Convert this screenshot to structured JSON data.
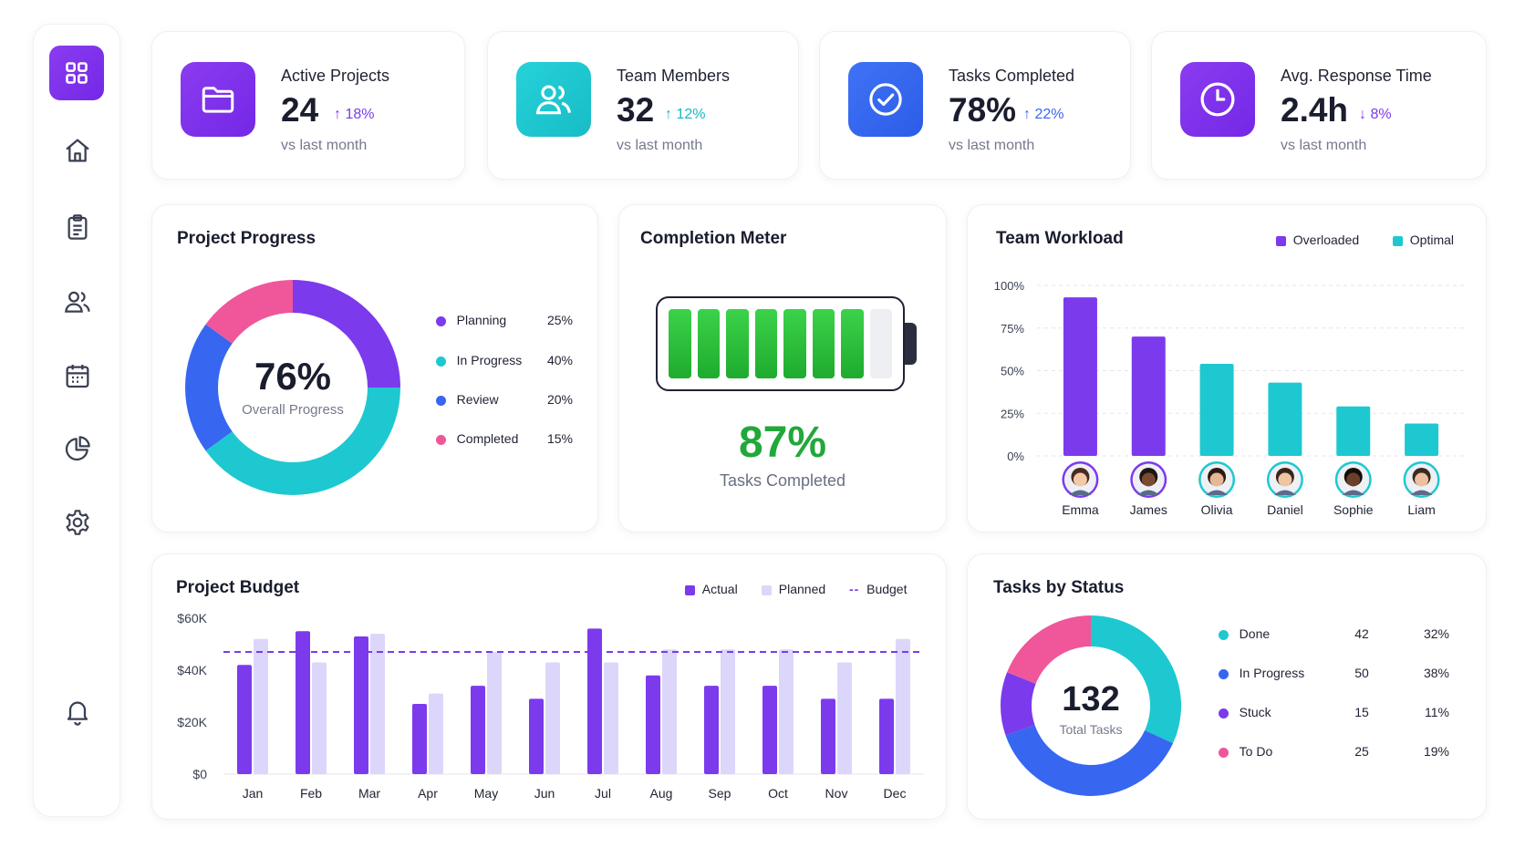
{
  "colors": {
    "purple": "#7c3aed",
    "teal": "#1ec8d0",
    "blue": "#3766f0",
    "pink": "#f0569a",
    "green": "#22b534",
    "lavender": "#ddd6fb"
  },
  "sidebar": {
    "items": [
      {
        "icon": "dashboard-grid-icon"
      },
      {
        "icon": "home-icon"
      },
      {
        "icon": "clipboard-icon"
      },
      {
        "icon": "users-icon"
      },
      {
        "icon": "calendar-icon"
      },
      {
        "icon": "pie-chart-icon"
      },
      {
        "icon": "settings-gear-icon"
      },
      {
        "icon": "bell-icon"
      }
    ]
  },
  "kpis": [
    {
      "label": "Active Projects",
      "value": "24",
      "trend": "18%",
      "direction": "up",
      "sub": "vs last month",
      "icon": "folder-icon",
      "color": "#7c3aed"
    },
    {
      "label": "Team Members",
      "value": "32",
      "trend": "12%",
      "direction": "up",
      "sub": "vs last month",
      "icon": "users-icon",
      "color": "#1ec8d0"
    },
    {
      "label": "Tasks Completed",
      "value": "78%",
      "trend": "22%",
      "direction": "up",
      "sub": "vs last month",
      "icon": "check-circle-icon",
      "color": "#3766f0"
    },
    {
      "label": "Avg. Response Time",
      "value": "2.4h",
      "trend": "8%",
      "direction": "down",
      "sub": "vs last month",
      "icon": "clock-icon",
      "color": "#7c3aed"
    }
  ],
  "project_progress": {
    "title": "Project Progress",
    "center_value": "76%",
    "center_label": "Overall Progress",
    "legend": [
      {
        "label": "Planning",
        "value": "25%"
      },
      {
        "label": "In Progress",
        "value": "40%"
      },
      {
        "label": "Review",
        "value": "20%"
      },
      {
        "label": "Completed",
        "value": "15%"
      }
    ]
  },
  "completion_meter": {
    "title": "Completion Meter",
    "value": "87%",
    "label": "Tasks Completed",
    "fraction": 0.87,
    "segments_total": 8,
    "segments_filled": 7
  },
  "team_workload": {
    "title": "Team Workload",
    "legend": [
      "Overloaded",
      "Optimal"
    ],
    "members": [
      "Emma",
      "James",
      "Olivia",
      "Daniel",
      "Sophie",
      "Liam"
    ]
  },
  "project_budget": {
    "title": "Project Budget",
    "legend": [
      "Actual",
      "Planned",
      "Budget"
    ]
  },
  "tasks_by_status": {
    "title": "Tasks by Status",
    "total_value": "132",
    "total_label": "Total Tasks",
    "rows": [
      {
        "label": "Done",
        "count": "42",
        "percent": "32%"
      },
      {
        "label": "In Progress",
        "count": "50",
        "percent": "38%"
      },
      {
        "label": "Stuck",
        "count": "15",
        "percent": "11%"
      },
      {
        "label": "To Do",
        "count": "25",
        "percent": "19%"
      }
    ]
  },
  "chart_data": [
    {
      "type": "pie",
      "title": "Project Progress",
      "categories": [
        "Planning",
        "In Progress",
        "Review",
        "Completed"
      ],
      "values": [
        25,
        40,
        20,
        15
      ],
      "colors": [
        "#7c3aed",
        "#1ec8d0",
        "#3766f0",
        "#f0569a"
      ]
    },
    {
      "type": "bar",
      "title": "Team Workload",
      "categories": [
        "Emma",
        "James",
        "Olivia",
        "Daniel",
        "Sophie",
        "Liam"
      ],
      "series": [
        {
          "name": "Overloaded",
          "values": [
            93,
            70,
            null,
            null,
            null,
            null
          ],
          "color": "#7c3aed"
        },
        {
          "name": "Optimal",
          "values": [
            null,
            null,
            54,
            43,
            29,
            19
          ],
          "color": "#1ec8d0"
        }
      ],
      "ylim": [
        0,
        100
      ],
      "yticks": [
        "100%",
        "75%",
        "50%",
        "25%",
        "0%"
      ],
      "yticks_values": [
        100,
        75,
        50,
        25,
        0
      ],
      "grid": true,
      "legend": "top-right"
    },
    {
      "type": "bar",
      "title": "Project Budget",
      "categories": [
        "Jan",
        "Feb",
        "Mar",
        "Apr",
        "May",
        "Jun",
        "Jul",
        "Aug",
        "Sep",
        "Oct",
        "Nov",
        "Dec"
      ],
      "series": [
        {
          "name": "Actual",
          "values": [
            42,
            55,
            53,
            27,
            34,
            29,
            56,
            38,
            34,
            34,
            29,
            29
          ],
          "color": "#7c3aed"
        },
        {
          "name": "Planned",
          "values": [
            52,
            43,
            54,
            31,
            47,
            43,
            43,
            48,
            48,
            48,
            43,
            52
          ],
          "color": "#ddd6fb"
        },
        {
          "name": "Budget",
          "values": [
            47,
            47,
            47,
            47,
            47,
            47,
            47,
            47,
            47,
            47,
            47,
            47
          ],
          "color": "#7c3aed"
        }
      ],
      "ylim": [
        0,
        60
      ],
      "yticks": [
        "$60K",
        "$40K",
        "$20K",
        "$0"
      ],
      "yticks_values": [
        60,
        40,
        20,
        0
      ],
      "legend": "top-right"
    },
    {
      "type": "pie",
      "title": "Tasks by Status",
      "categories": [
        "Done",
        "In Progress",
        "Stuck",
        "To Do"
      ],
      "values": [
        42,
        50,
        15,
        25
      ],
      "percents": [
        32,
        38,
        11,
        19
      ],
      "colors": [
        "#1ec8d0",
        "#3766f0",
        "#7c3aed",
        "#f0569a"
      ]
    }
  ]
}
